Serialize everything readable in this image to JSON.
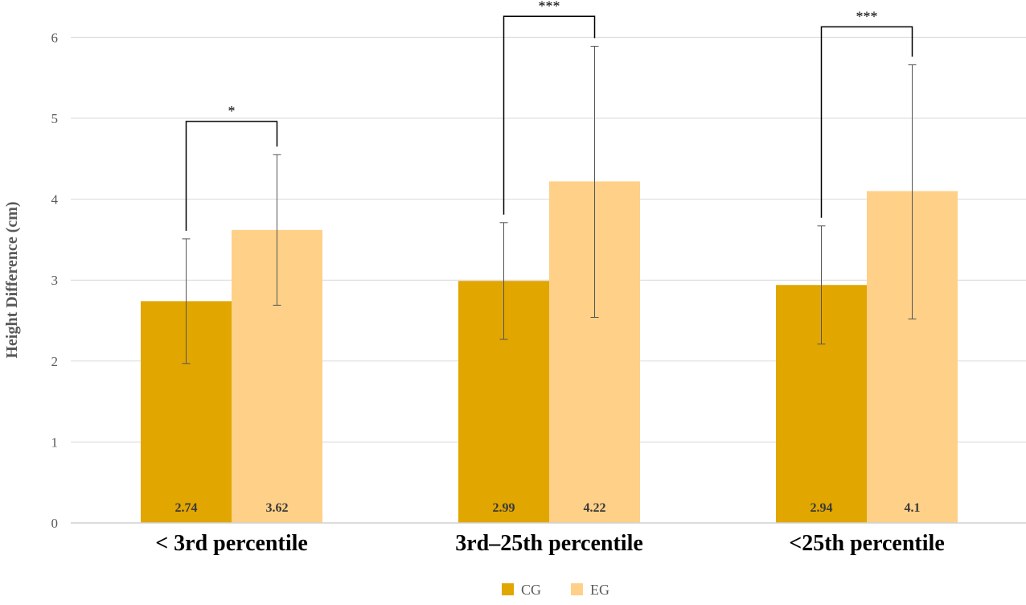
{
  "chart_data": {
    "type": "bar",
    "title": "",
    "xlabel": "",
    "ylabel": "Height Difference (cm)",
    "ylim": [
      0,
      6
    ],
    "yticks": [
      0,
      1,
      2,
      3,
      4,
      5,
      6
    ],
    "grid": true,
    "legend_position": "bottom",
    "categories": [
      "< 3rd percentile",
      "3rd–25th percentile",
      "<25th percentile"
    ],
    "series": [
      {
        "name": "CG",
        "color": "#E2A600",
        "values": [
          2.74,
          2.99,
          2.94
        ],
        "labels": [
          "2.74",
          "2.99",
          "2.94"
        ],
        "error_low": [
          1.97,
          2.27,
          2.21
        ],
        "error_high": [
          3.51,
          3.71,
          3.67
        ]
      },
      {
        "name": "EG",
        "color": "#FFD088",
        "values": [
          3.62,
          4.22,
          4.1
        ],
        "labels": [
          "3.62",
          "4.22",
          "4.1"
        ],
        "error_low": [
          2.69,
          2.54,
          2.52
        ],
        "error_high": [
          4.55,
          5.89,
          5.66
        ]
      }
    ],
    "significance": [
      {
        "category": 0,
        "label": "*",
        "level": 4.96
      },
      {
        "category": 1,
        "label": "***",
        "level": 6.26
      },
      {
        "category": 2,
        "label": "***",
        "level": 6.13
      }
    ]
  }
}
